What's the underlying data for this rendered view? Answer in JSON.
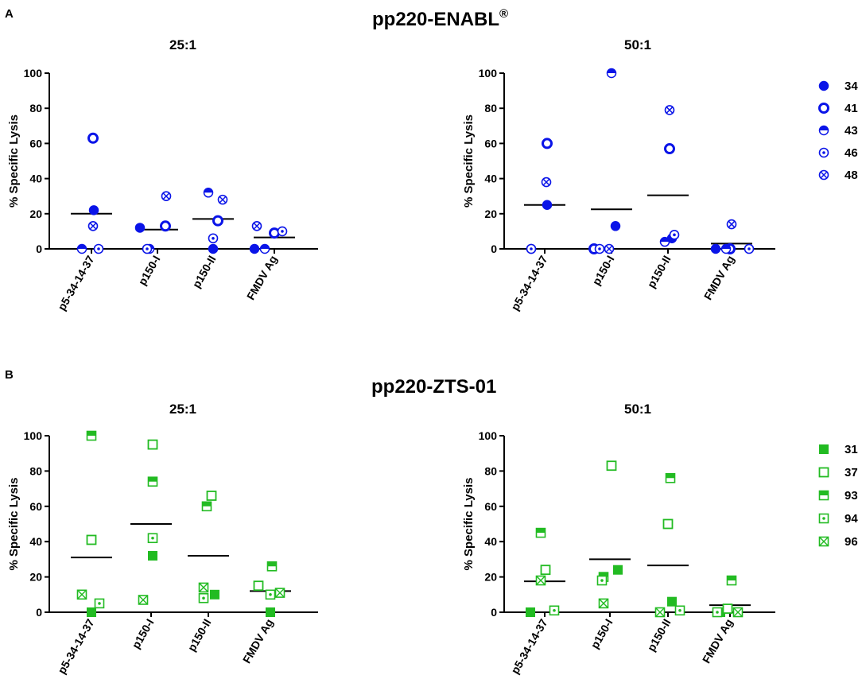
{
  "panels": [
    {
      "label": "A",
      "title": "pp220-ENABL",
      "title_sup": "®",
      "color": "#0a14e8",
      "marker_shape": "circle"
    },
    {
      "label": "B",
      "title": "pp220-ZTS-01",
      "title_sup": "",
      "color": "#22bb22",
      "marker_shape": "square"
    }
  ],
  "chart_data": [
    {
      "type": "scatter",
      "panel": "A",
      "title": "25:1",
      "ylabel": "% Specific Lysis",
      "xlabel": "",
      "ylim": [
        0,
        100
      ],
      "yticks": [
        0,
        20,
        40,
        60,
        80,
        100
      ],
      "categories": [
        "p5-34-14-37",
        "p150-I",
        "p150-II",
        "FMDV Ag"
      ],
      "series": [
        {
          "name": "34",
          "style": "filled",
          "values": [
            22,
            12,
            0,
            0
          ]
        },
        {
          "name": "41",
          "style": "open-thick",
          "values": [
            63,
            13,
            16,
            9
          ]
        },
        {
          "name": "43",
          "style": "half",
          "values": [
            0,
            0,
            32,
            0
          ]
        },
        {
          "name": "46",
          "style": "dot",
          "values": [
            0,
            0,
            6,
            10
          ]
        },
        {
          "name": "48",
          "style": "cross",
          "values": [
            13,
            30,
            28,
            13
          ]
        }
      ],
      "medians": [
        20,
        11,
        17,
        6.5
      ]
    },
    {
      "type": "scatter",
      "panel": "A",
      "title": "50:1",
      "ylabel": "% Specific Lysis",
      "xlabel": "",
      "ylim": [
        0,
        100
      ],
      "yticks": [
        0,
        20,
        40,
        60,
        80,
        100
      ],
      "categories": [
        "p5-34-14-37",
        "p150-I",
        "p150-II",
        "FMDV Ag"
      ],
      "legend": [
        "34",
        "41",
        "43",
        "46",
        "48"
      ],
      "series": [
        {
          "name": "34",
          "style": "filled",
          "values": [
            25,
            13,
            6,
            0
          ]
        },
        {
          "name": "41",
          "style": "open-thick",
          "values": [
            60,
            0,
            57,
            0
          ]
        },
        {
          "name": "43",
          "style": "half",
          "values": [
            0,
            100,
            4,
            0
          ]
        },
        {
          "name": "46",
          "style": "dot",
          "values": [
            0,
            0,
            8,
            0
          ]
        },
        {
          "name": "48",
          "style": "cross",
          "values": [
            38,
            0,
            79,
            14
          ]
        }
      ],
      "medians": [
        25,
        22.5,
        30.5,
        3
      ]
    },
    {
      "type": "scatter",
      "panel": "B",
      "title": "25:1",
      "ylabel": "% Specific Lysis",
      "xlabel": "",
      "ylim": [
        0,
        100
      ],
      "yticks": [
        0,
        20,
        40,
        60,
        80,
        100
      ],
      "categories": [
        "p5-34-14-37",
        "p150-I",
        "p150-II",
        "FMDV Ag"
      ],
      "series": [
        {
          "name": "31",
          "style": "filled",
          "values": [
            0,
            32,
            10,
            0
          ]
        },
        {
          "name": "37",
          "style": "open",
          "values": [
            41,
            95,
            66,
            15
          ]
        },
        {
          "name": "93",
          "style": "half",
          "values": [
            100,
            74,
            60,
            26
          ]
        },
        {
          "name": "94",
          "style": "dot",
          "values": [
            5,
            42,
            8,
            10
          ]
        },
        {
          "name": "96",
          "style": "cross",
          "values": [
            10,
            7,
            14,
            11
          ]
        }
      ],
      "medians": [
        31,
        50,
        32,
        12
      ]
    },
    {
      "type": "scatter",
      "panel": "B",
      "title": "50:1",
      "ylabel": "% Specific Lysis",
      "xlabel": "",
      "ylim": [
        0,
        100
      ],
      "yticks": [
        0,
        20,
        40,
        60,
        80,
        100
      ],
      "categories": [
        "p5-34-14-37",
        "p150-I",
        "p150-II",
        "FMDV Ag"
      ],
      "legend": [
        "31",
        "37",
        "93",
        "94",
        "96"
      ],
      "series": [
        {
          "name": "31",
          "style": "filled",
          "values": [
            0,
            24,
            6,
            0
          ]
        },
        {
          "name": "37",
          "style": "open",
          "values": [
            24,
            83,
            50,
            2
          ]
        },
        {
          "name": "93",
          "style": "half",
          "values": [
            45,
            20,
            76,
            18
          ]
        },
        {
          "name": "94",
          "style": "dot",
          "values": [
            1,
            18,
            1,
            0
          ]
        },
        {
          "name": "96",
          "style": "cross",
          "values": [
            18,
            5,
            0,
            0
          ]
        }
      ],
      "medians": [
        17.5,
        30,
        26.5,
        4
      ]
    }
  ]
}
